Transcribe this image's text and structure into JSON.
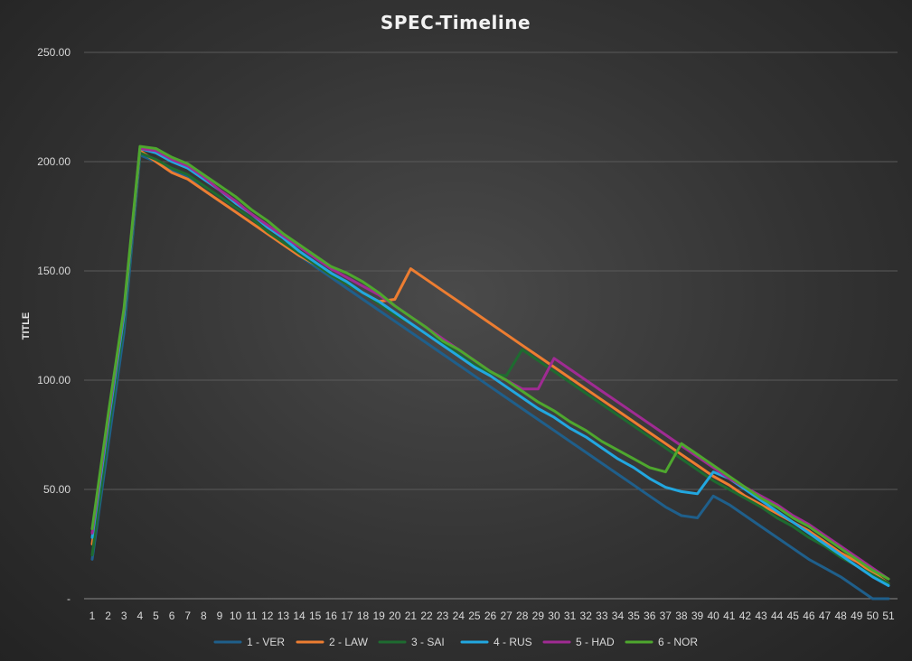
{
  "chart_data": {
    "type": "line",
    "title": "SPEC-Timeline",
    "ylabel": "TITLE",
    "xlabel": "",
    "ylim": [
      0,
      250
    ],
    "yticks": [
      0,
      50,
      100,
      150,
      200,
      250
    ],
    "ytick_labels": [
      "-",
      "50.00",
      "100.00",
      "150.00",
      "200.00",
      "250.00"
    ],
    "grid": true,
    "legend_position": "bottom",
    "categories": [
      "1",
      "2",
      "3",
      "4",
      "5",
      "6",
      "7",
      "8",
      "9",
      "10",
      "11",
      "12",
      "13",
      "14",
      "15",
      "16",
      "17",
      "18",
      "19",
      "20",
      "21",
      "22",
      "23",
      "24",
      "25",
      "26",
      "27",
      "28",
      "29",
      "30",
      "31",
      "32",
      "33",
      "34",
      "35",
      "36",
      "37",
      "38",
      "39",
      "40",
      "41",
      "42",
      "43",
      "44",
      "45",
      "46",
      "47",
      "48",
      "49",
      "50",
      "51"
    ],
    "series": [
      {
        "name": "1 - VER",
        "color": "#1f5f8b",
        "values": [
          18,
          70,
          122,
          203,
          200,
          196,
          193,
          187,
          182,
          177,
          172,
          167,
          162,
          157,
          152,
          147,
          142,
          137,
          132,
          127,
          122,
          117,
          112,
          107,
          102,
          97,
          92,
          87,
          82,
          77,
          72,
          67,
          62,
          57,
          52,
          47,
          42,
          38,
          37,
          47,
          43,
          38,
          33,
          28,
          23,
          18,
          14,
          10,
          5,
          0,
          0
        ]
      },
      {
        "name": "2 - LAW",
        "color": "#ed7d31",
        "values": [
          25,
          78,
          128,
          205,
          200,
          195,
          192,
          187,
          182,
          177,
          172,
          167,
          162,
          157,
          153,
          148,
          144,
          140,
          136,
          137,
          151,
          146,
          141,
          136,
          131,
          126,
          121,
          116,
          111,
          106,
          101,
          96,
          91,
          86,
          81,
          76,
          71,
          66,
          61,
          56,
          52,
          47,
          43,
          39,
          35,
          31,
          26,
          21,
          17,
          12,
          7
        ]
      },
      {
        "name": "3 - SAI",
        "color": "#1e6b30",
        "values": [
          20,
          75,
          127,
          204,
          201,
          197,
          194,
          189,
          184,
          179,
          174,
          168,
          163,
          158,
          153,
          148,
          144,
          140,
          135,
          130,
          126,
          121,
          117,
          112,
          107,
          103,
          102,
          114,
          109,
          104,
          99,
          94,
          89,
          84,
          79,
          74,
          69,
          64,
          59,
          54,
          50,
          46,
          42,
          37,
          33,
          28,
          24,
          19,
          15,
          11,
          7
        ]
      },
      {
        "name": "4 - RUS",
        "color": "#22a7e0",
        "values": [
          28,
          80,
          130,
          206,
          204,
          200,
          197,
          192,
          187,
          181,
          176,
          170,
          165,
          159,
          154,
          149,
          145,
          140,
          136,
          131,
          126,
          121,
          116,
          111,
          106,
          102,
          97,
          92,
          87,
          83,
          78,
          74,
          69,
          64,
          60,
          55,
          51,
          49,
          48,
          58,
          55,
          50,
          45,
          40,
          35,
          30,
          25,
          20,
          15,
          10,
          6
        ]
      },
      {
        "name": "5 - HAD",
        "color": "#a02b93",
        "values": [
          30,
          82,
          132,
          206,
          205,
          201,
          198,
          193,
          187,
          182,
          176,
          171,
          166,
          161,
          156,
          151,
          147,
          143,
          139,
          134,
          129,
          124,
          119,
          114,
          109,
          104,
          100,
          96,
          96,
          110,
          105,
          100,
          95,
          90,
          85,
          80,
          75,
          70,
          65,
          60,
          55,
          51,
          47,
          43,
          38,
          34,
          29,
          24,
          19,
          14,
          9
        ]
      },
      {
        "name": "6 - NOR",
        "color": "#4ea72e",
        "values": [
          32,
          84,
          133,
          207,
          206,
          202,
          199,
          194,
          189,
          184,
          178,
          173,
          167,
          162,
          157,
          152,
          149,
          145,
          140,
          134,
          129,
          124,
          118,
          114,
          109,
          104,
          100,
          95,
          90,
          86,
          81,
          77,
          72,
          68,
          64,
          60,
          58,
          71,
          66,
          61,
          56,
          51,
          46,
          42,
          37,
          33,
          28,
          23,
          18,
          13,
          9
        ]
      }
    ]
  }
}
